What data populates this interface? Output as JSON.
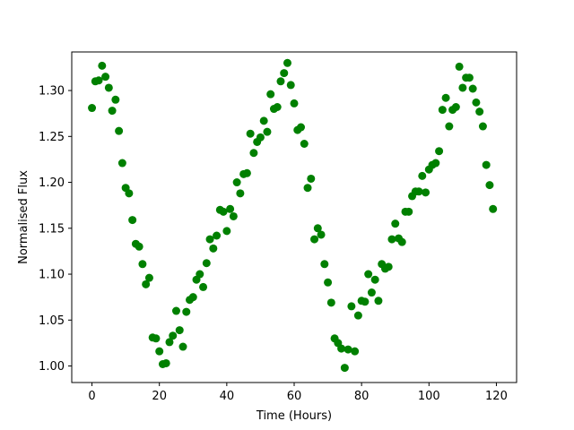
{
  "chart_data": {
    "type": "scatter",
    "title": "",
    "xlabel": "Time (Hours)",
    "ylabel": "Normalised Flux",
    "xlim": [
      -6,
      126
    ],
    "ylim": [
      0.982,
      1.342
    ],
    "xticks": [
      0,
      20,
      40,
      60,
      80,
      100,
      120
    ],
    "yticks": [
      1.0,
      1.05,
      1.1,
      1.15,
      1.2,
      1.25,
      1.3
    ],
    "ytick_labels": [
      "1.00",
      "1.05",
      "1.10",
      "1.15",
      "1.20",
      "1.25",
      "1.30"
    ],
    "grid": false,
    "legend": "none",
    "marker_color": "#008000",
    "series": [
      {
        "x": [
          0,
          1,
          2,
          3,
          4,
          5,
          6,
          7,
          8,
          9,
          10,
          11,
          12,
          13,
          14,
          15,
          16,
          17,
          18,
          19,
          20,
          21,
          22,
          23,
          24,
          25,
          26,
          27,
          28,
          29,
          30,
          31,
          32,
          33,
          34,
          35,
          36,
          37,
          38,
          39,
          40,
          41,
          42,
          43,
          44,
          45,
          46,
          47,
          48,
          49,
          50,
          51,
          52,
          53,
          54,
          55,
          56,
          57,
          58,
          59,
          60,
          61,
          62,
          63,
          64,
          65,
          66,
          67,
          68,
          69,
          70,
          71,
          72,
          73,
          74,
          75,
          76,
          77,
          78,
          79,
          80,
          81,
          82,
          83,
          84,
          85,
          86,
          87,
          88,
          89,
          90,
          91,
          92,
          93,
          94,
          95,
          96,
          97,
          98,
          99,
          100,
          101,
          102,
          103,
          104,
          105,
          106,
          107,
          108,
          109,
          110,
          111,
          112,
          113,
          114,
          115,
          116,
          117,
          118,
          119
        ],
        "y": [
          1.281,
          1.31,
          1.311,
          1.327,
          1.315,
          1.303,
          1.278,
          1.29,
          1.256,
          1.221,
          1.194,
          1.188,
          1.159,
          1.133,
          1.13,
          1.111,
          1.089,
          1.096,
          1.031,
          1.03,
          1.016,
          1.002,
          1.003,
          1.026,
          1.033,
          1.06,
          1.039,
          1.021,
          1.059,
          1.072,
          1.075,
          1.094,
          1.1,
          1.086,
          1.112,
          1.138,
          1.128,
          1.142,
          1.17,
          1.168,
          1.147,
          1.171,
          1.163,
          1.2,
          1.188,
          1.209,
          1.21,
          1.253,
          1.232,
          1.244,
          1.249,
          1.267,
          1.255,
          1.296,
          1.28,
          1.282,
          1.31,
          1.319,
          1.33,
          1.306,
          1.286,
          1.257,
          1.26,
          1.242,
          1.194,
          1.204,
          1.138,
          1.15,
          1.143,
          1.111,
          1.091,
          1.069,
          1.03,
          1.025,
          1.019,
          0.998,
          1.018,
          1.065,
          1.016,
          1.055,
          1.071,
          1.07,
          1.1,
          1.08,
          1.094,
          1.071,
          1.111,
          1.106,
          1.108,
          1.138,
          1.155,
          1.139,
          1.135,
          1.168,
          1.168,
          1.185,
          1.19,
          1.19,
          1.207,
          1.189,
          1.214,
          1.219,
          1.221,
          1.234,
          1.279,
          1.292,
          1.261,
          1.279,
          1.282,
          1.326,
          1.303,
          1.314,
          1.314,
          1.302,
          1.287,
          1.277,
          1.261,
          1.219,
          1.197,
          1.171
        ]
      }
    ]
  }
}
